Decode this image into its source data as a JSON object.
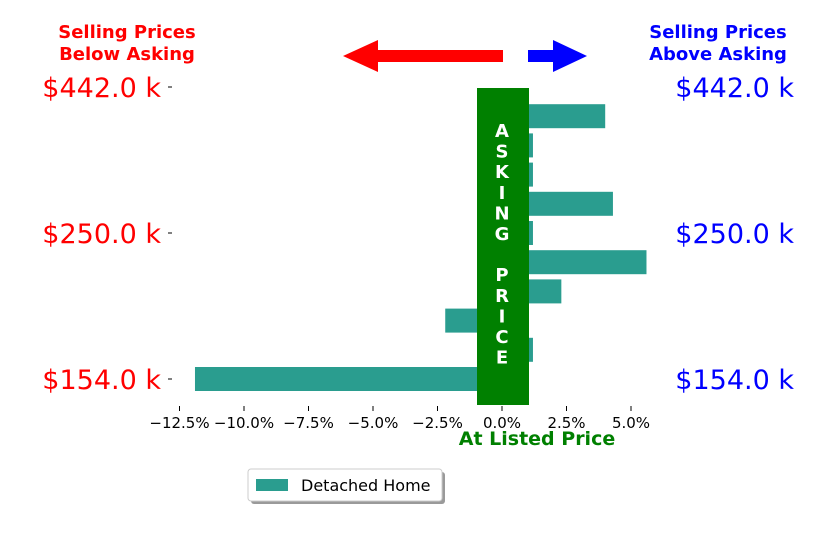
{
  "chart_data": {
    "type": "bar",
    "orientation": "horizontal",
    "title": "",
    "xlabel": "At Listed Price",
    "ylabel": "",
    "xlim": [
      -12.5,
      5.5
    ],
    "x_ticks": [
      -12.5,
      -10.0,
      -7.5,
      -5.0,
      -2.5,
      0.0,
      2.5,
      5.0
    ],
    "x_tick_labels": [
      "−12.5%",
      "−10.0%",
      "−7.5%",
      "−5.0%",
      "−2.5%",
      "0.0%",
      "2.5%",
      "5.0%"
    ],
    "series": [
      {
        "name": "Detached Home",
        "color": "#2a9d8f",
        "values": [
          -11.9,
          1.2,
          -2.2,
          2.3,
          5.6,
          1.2,
          4.3,
          1.2,
          1.2,
          4.0
        ]
      }
    ],
    "price_tick_labels": [
      "$154.0 k",
      "$250.0 k",
      "$442.0 k"
    ],
    "price_tick_index": [
      0,
      5,
      10
    ],
    "grid": false,
    "legend": "bottom-center"
  },
  "header": {
    "left_line1": "Selling Prices",
    "left_line2": "Below Asking",
    "right_line1": "Selling Prices",
    "right_line2": "Above Asking"
  },
  "center_band": {
    "letters": [
      "A",
      "S",
      "K",
      "I",
      "N",
      "G",
      "",
      "P",
      "R",
      "I",
      "C",
      "E"
    ],
    "color": "#008000"
  },
  "colors": {
    "below": "#ff0000",
    "above": "#0000ff",
    "bars": "#2a9d8f",
    "band": "#008000"
  }
}
